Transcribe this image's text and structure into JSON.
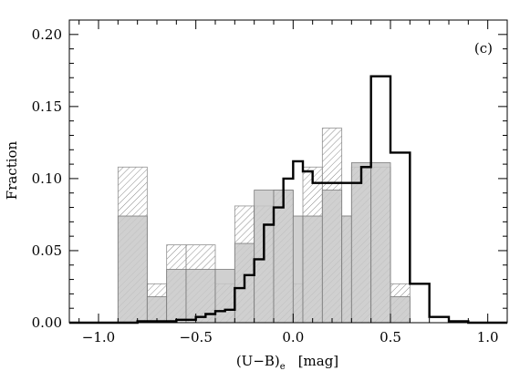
{
  "chart_data": {
    "type": "histogram",
    "panel_label": "(c)",
    "xlabel_main": "(U−B)",
    "xlabel_sub": "e",
    "xlabel_unit": "[mag]",
    "ylabel": "Fraction",
    "xlim": [
      -1.15,
      1.1
    ],
    "ylim": [
      0.0,
      0.21
    ],
    "x_ticks": [
      -1.0,
      -0.5,
      0.0,
      0.5,
      1.0
    ],
    "x_tick_labels": [
      "−1.0",
      "−0.5",
      "0.0",
      "0.5",
      "1.0"
    ],
    "y_ticks": [
      0.0,
      0.05,
      0.1,
      0.15,
      0.2
    ],
    "y_tick_labels": [
      "0.00",
      "0.05",
      "0.10",
      "0.15",
      "0.20"
    ],
    "series": [
      {
        "style": "hatched-light",
        "color": "#909090",
        "bin_edges": [
          -0.9,
          -0.75,
          -0.65,
          -0.55,
          -0.4,
          -0.3,
          -0.2,
          -0.1,
          0.0,
          0.05,
          0.15,
          0.25,
          0.3,
          0.4,
          0.5,
          0.6
        ],
        "values": [
          0.108,
          0.027,
          0.054,
          0.054,
          0.027,
          0.081,
          0.081,
          0.092,
          0.027,
          0.108,
          0.135,
          0.074,
          0.108,
          0.108,
          0.027
        ]
      },
      {
        "style": "filled-gray",
        "color": "#c8c8c8",
        "bin_edges": [
          -0.9,
          -0.75,
          -0.65,
          -0.55,
          -0.4,
          -0.3,
          -0.2,
          -0.1,
          0.0,
          0.05,
          0.15,
          0.25,
          0.3,
          0.4,
          0.5,
          0.6
        ],
        "values": [
          0.074,
          0.018,
          0.037,
          0.037,
          0.037,
          0.055,
          0.092,
          0.092,
          0.074,
          0.074,
          0.092,
          0.074,
          0.111,
          0.111,
          0.018
        ]
      },
      {
        "style": "step-bold",
        "color": "#000000",
        "bin_edges": [
          -1.15,
          -0.9,
          -0.8,
          -0.7,
          -0.6,
          -0.5,
          -0.45,
          -0.4,
          -0.35,
          -0.3,
          -0.25,
          -0.2,
          -0.15,
          -0.1,
          -0.05,
          0.0,
          0.05,
          0.1,
          0.2,
          0.25,
          0.35,
          0.4,
          0.45,
          0.5,
          0.55,
          0.6,
          0.7,
          0.8,
          0.9,
          1.1
        ],
        "values": [
          0.0,
          0.0,
          0.001,
          0.001,
          0.002,
          0.004,
          0.006,
          0.008,
          0.009,
          0.024,
          0.033,
          0.044,
          0.068,
          0.08,
          0.1,
          0.112,
          0.105,
          0.097,
          0.097,
          0.097,
          0.108,
          0.171,
          0.171,
          0.118,
          0.118,
          0.027,
          0.004,
          0.001,
          0.0
        ]
      }
    ]
  }
}
